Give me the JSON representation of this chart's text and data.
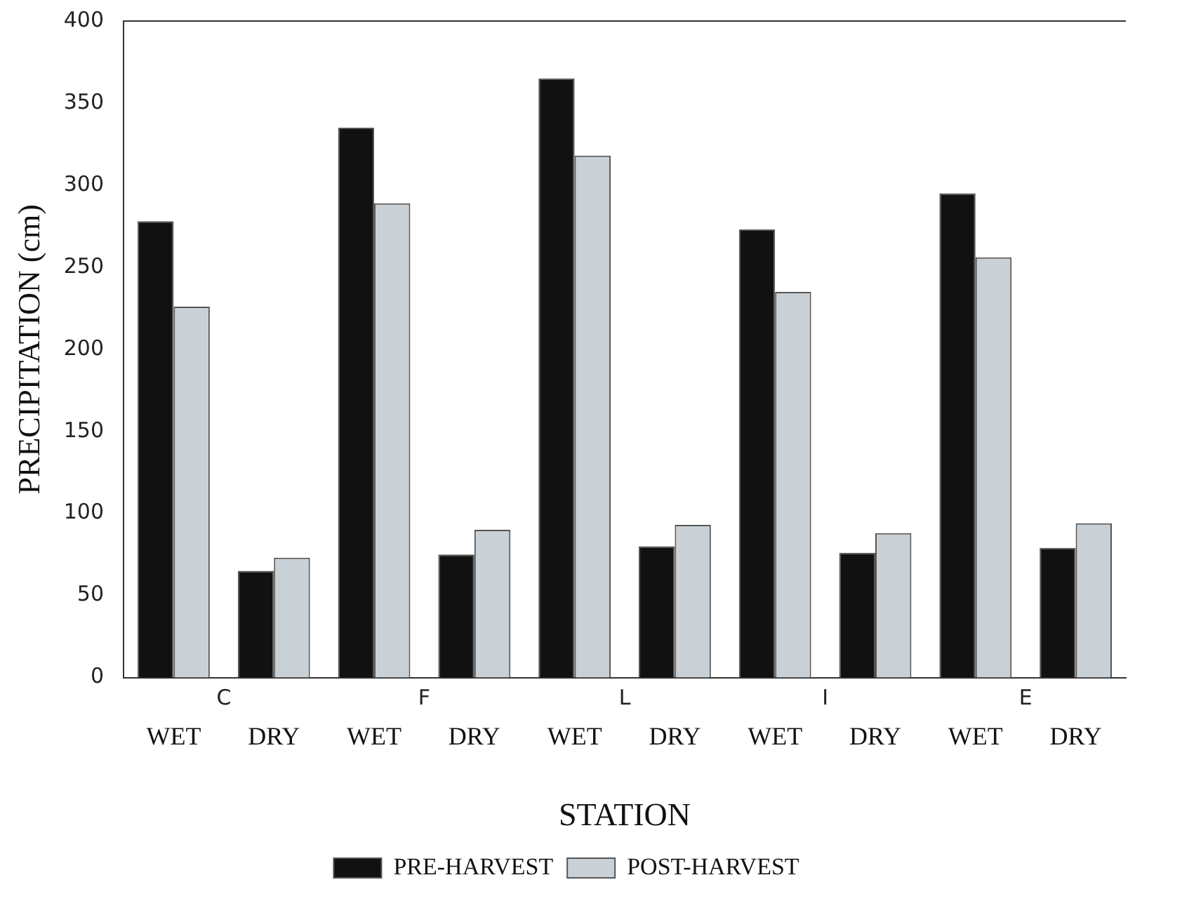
{
  "chart_data": {
    "type": "bar",
    "xlabel": "STATION",
    "ylabel": "PRECIPITATION (cm)",
    "categories": [
      "WET",
      "DRY",
      "WET",
      "DRY",
      "WET",
      "DRY",
      "WET",
      "DRY",
      "WET",
      "DRY"
    ],
    "annotations": [
      "C",
      "F",
      "L",
      "I",
      "E"
    ],
    "series": [
      {
        "name": "PRE-HARVEST",
        "color": "#111111",
        "values": [
          278,
          65,
          335,
          75,
          365,
          80,
          273,
          76,
          295,
          79
        ]
      },
      {
        "name": "POST-HARVEST",
        "color": "#c9d1d6",
        "values": [
          226,
          73,
          289,
          90,
          318,
          93,
          235,
          88,
          256,
          94
        ]
      }
    ],
    "ylim": [
      0,
      400
    ],
    "yticks": [
      0,
      50,
      100,
      150,
      200,
      250,
      300,
      350,
      400
    ],
    "grid": false,
    "legend": "bottom"
  }
}
